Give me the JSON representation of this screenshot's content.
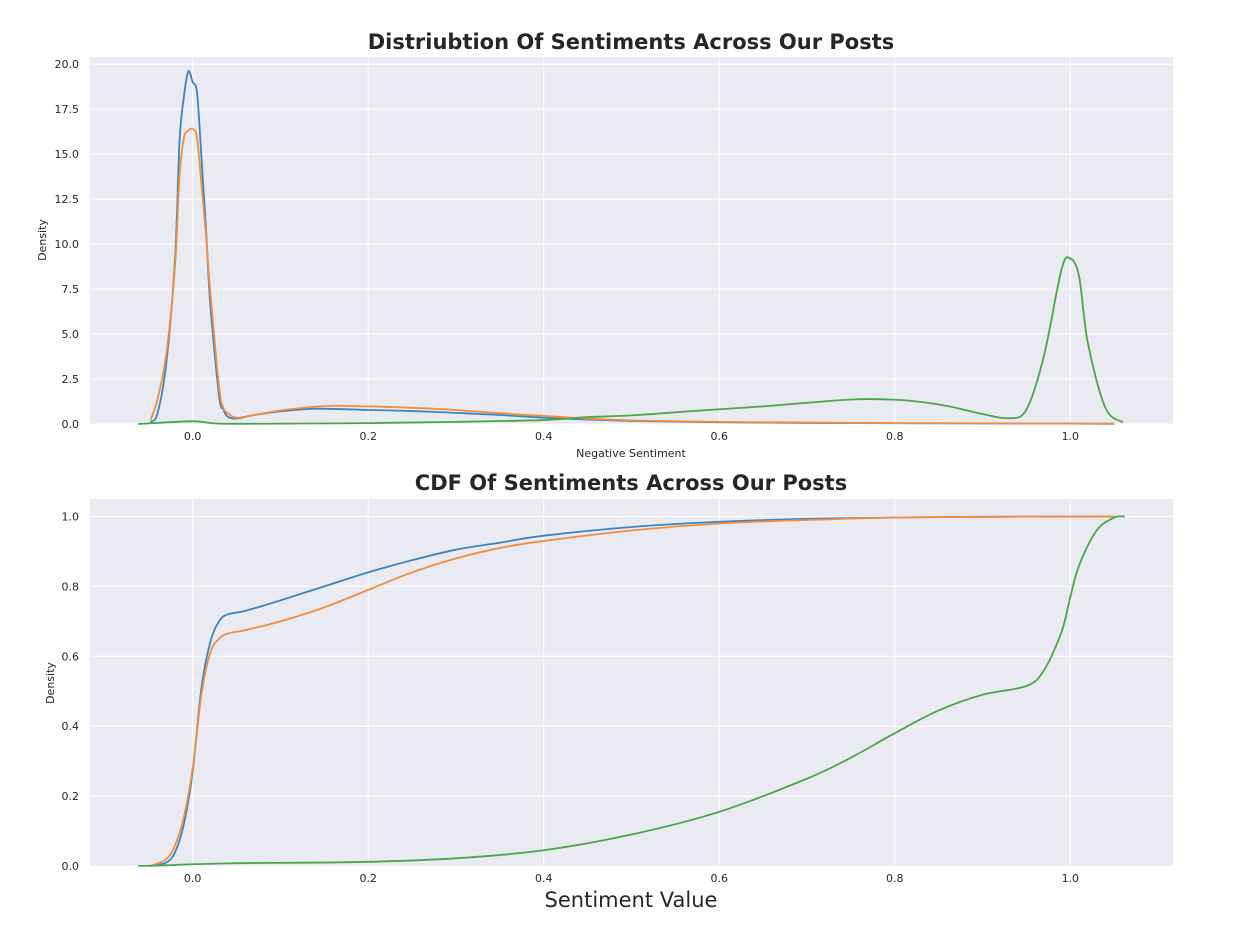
{
  "chart_data": [
    {
      "type": "line",
      "title": "Distriubtion Of Sentiments Across Our Posts",
      "xlabel": "Negative Sentiment",
      "ylabel": "Density",
      "xlim": [
        -0.117,
        1.117
      ],
      "ylim": [
        0,
        20.4
      ],
      "xticks": [
        "0.0",
        "0.2",
        "0.4",
        "0.6",
        "0.8",
        "1.0"
      ],
      "xtick_values": [
        0.0,
        0.2,
        0.4,
        0.6,
        0.8,
        1.0
      ],
      "yticks": [
        "0.0",
        "2.5",
        "5.0",
        "7.5",
        "10.0",
        "12.5",
        "15.0",
        "17.5",
        "20.0"
      ],
      "ytick_values": [
        0,
        2.5,
        5,
        7.5,
        10,
        12.5,
        15,
        17.5,
        20
      ],
      "grid": true,
      "series": [
        {
          "color": "#3a85c2",
          "x": [
            -0.048,
            -0.04,
            -0.03,
            -0.02,
            -0.015,
            -0.01,
            -0.005,
            0.0,
            0.005,
            0.01,
            0.015,
            0.02,
            0.03,
            0.035,
            0.04,
            0.05,
            0.07,
            0.1,
            0.14,
            0.2,
            0.25,
            0.3,
            0.35,
            0.4,
            0.45,
            0.5,
            0.6,
            0.7,
            0.8,
            0.9,
            1.0,
            1.05
          ],
          "y": [
            0.1,
            0.6,
            3.4,
            9.3,
            15.7,
            18.2,
            19.6,
            19.0,
            18.4,
            14.8,
            11.0,
            6.7,
            1.6,
            0.8,
            0.4,
            0.3,
            0.5,
            0.7,
            0.85,
            0.78,
            0.72,
            0.62,
            0.5,
            0.35,
            0.25,
            0.17,
            0.1,
            0.06,
            0.04,
            0.03,
            0.02,
            0.01
          ]
        },
        {
          "color": "#f28e3c",
          "x": [
            -0.048,
            -0.04,
            -0.03,
            -0.02,
            -0.015,
            -0.01,
            -0.005,
            0.0,
            0.005,
            0.01,
            0.015,
            0.02,
            0.03,
            0.035,
            0.04,
            0.05,
            0.07,
            0.1,
            0.15,
            0.2,
            0.25,
            0.3,
            0.35,
            0.4,
            0.45,
            0.5,
            0.6,
            0.7,
            0.8,
            0.9,
            1.0,
            1.05
          ],
          "y": [
            0.2,
            1.4,
            3.9,
            8.9,
            13.8,
            15.9,
            16.3,
            16.4,
            15.9,
            13.3,
            10.6,
            7.4,
            2.1,
            0.9,
            0.6,
            0.35,
            0.5,
            0.75,
            1.0,
            0.98,
            0.9,
            0.78,
            0.6,
            0.45,
            0.3,
            0.2,
            0.12,
            0.08,
            0.05,
            0.04,
            0.03,
            0.02
          ]
        },
        {
          "color": "#4aa64a",
          "x": [
            -0.062,
            0.0,
            0.03,
            0.1,
            0.2,
            0.3,
            0.4,
            0.45,
            0.5,
            0.55,
            0.6,
            0.65,
            0.7,
            0.75,
            0.78,
            0.82,
            0.86,
            0.9,
            0.93,
            0.95,
            0.97,
            0.99,
            1.0,
            1.01,
            1.02,
            1.04,
            1.06
          ],
          "y": [
            0.0,
            0.15,
            0.02,
            0.02,
            0.05,
            0.12,
            0.22,
            0.38,
            0.48,
            0.65,
            0.82,
            0.98,
            1.18,
            1.36,
            1.38,
            1.28,
            1.0,
            0.55,
            0.32,
            0.8,
            3.8,
            8.6,
            9.2,
            8.2,
            4.5,
            0.9,
            0.1
          ]
        }
      ]
    },
    {
      "type": "line",
      "title": "CDF Of Sentiments Across Our Posts",
      "xlabel": "Sentiment Value",
      "ylabel": "Density",
      "xlim": [
        -0.117,
        1.117
      ],
      "ylim": [
        0,
        1.05
      ],
      "xticks": [
        "0.0",
        "0.2",
        "0.4",
        "0.6",
        "0.8",
        "1.0"
      ],
      "xtick_values": [
        0.0,
        0.2,
        0.4,
        0.6,
        0.8,
        1.0
      ],
      "yticks": [
        "0.0",
        "0.2",
        "0.4",
        "0.6",
        "0.8",
        "1.0"
      ],
      "ytick_values": [
        0,
        0.2,
        0.4,
        0.6,
        0.8,
        1.0
      ],
      "grid": true,
      "series": [
        {
          "color": "#3a85c2",
          "x": [
            -0.048,
            -0.03,
            -0.02,
            -0.01,
            0.0,
            0.01,
            0.02,
            0.03,
            0.04,
            0.06,
            0.1,
            0.15,
            0.2,
            0.25,
            0.3,
            0.35,
            0.4,
            0.5,
            0.6,
            0.7,
            0.8,
            0.9,
            1.0,
            1.05
          ],
          "y": [
            0.0,
            0.01,
            0.04,
            0.12,
            0.27,
            0.51,
            0.64,
            0.7,
            0.72,
            0.73,
            0.76,
            0.8,
            0.84,
            0.875,
            0.905,
            0.925,
            0.945,
            0.97,
            0.985,
            0.993,
            0.997,
            0.999,
            1.0,
            1.0
          ]
        },
        {
          "color": "#f28e3c",
          "x": [
            -0.048,
            -0.03,
            -0.02,
            -0.01,
            0.0,
            0.01,
            0.02,
            0.03,
            0.04,
            0.06,
            0.1,
            0.15,
            0.2,
            0.25,
            0.3,
            0.35,
            0.4,
            0.5,
            0.6,
            0.7,
            0.8,
            0.9,
            1.0,
            1.05
          ],
          "y": [
            0.0,
            0.02,
            0.06,
            0.14,
            0.28,
            0.49,
            0.61,
            0.65,
            0.665,
            0.675,
            0.7,
            0.74,
            0.79,
            0.84,
            0.88,
            0.91,
            0.93,
            0.96,
            0.98,
            0.99,
            0.997,
            0.999,
            1.0,
            1.0
          ]
        },
        {
          "color": "#4aa64a",
          "x": [
            -0.062,
            -0.03,
            0.0,
            0.05,
            0.1,
            0.2,
            0.3,
            0.4,
            0.5,
            0.6,
            0.7,
            0.75,
            0.8,
            0.85,
            0.9,
            0.95,
            0.97,
            0.99,
            1.0,
            1.01,
            1.03,
            1.05,
            1.062
          ],
          "y": [
            0.0,
            0.002,
            0.005,
            0.008,
            0.009,
            0.012,
            0.022,
            0.045,
            0.09,
            0.155,
            0.25,
            0.31,
            0.38,
            0.445,
            0.49,
            0.515,
            0.56,
            0.67,
            0.77,
            0.86,
            0.96,
            0.997,
            1.0
          ]
        }
      ]
    }
  ]
}
